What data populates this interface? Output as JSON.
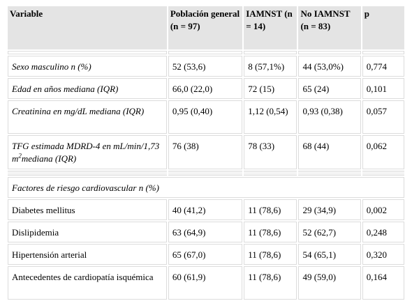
{
  "table": {
    "headers": [
      "Variable",
      "Población general (n = 97)",
      "IAMNST (n = 14)",
      "No IAMNST (n = 83)",
      "p"
    ],
    "rows": [
      {
        "variable": "Sexo masculino n (%)",
        "general": "52 (53,6)",
        "iamnst": "8 (57,1%)",
        "no_iamnst": "44 (53,0%)",
        "p": "0,774"
      },
      {
        "variable": "Edad en años mediana (IQR)",
        "general": "66,0 (22,0)",
        "iamnst": "72 (15)",
        "no_iamnst": "65 (24)",
        "p": "0,101"
      },
      {
        "variable": "Creatinina en mg/dL mediana (IQR)",
        "general": "0,95 (0,40)",
        "iamnst": "1,12 (0,54)",
        "no_iamnst": "0,93 (0,38)",
        "p": "0,057"
      },
      {
        "variable_pre": "TFG estimada MDRD-4 en mL/min/1,73 m",
        "variable_sup": "2",
        "variable_post": "mediana (IQR)",
        "general": "76 (38)",
        "iamnst": "78 (33)",
        "no_iamnst": "68 (44)",
        "p": "0,062"
      }
    ],
    "section_title": "Factores de riesgo cardiovascular n (%)",
    "section_rows": [
      {
        "variable": "Diabetes mellitus",
        "general": "40 (41,2)",
        "iamnst": "11 (78,6)",
        "no_iamnst": "29 (34,9)",
        "p": "0,002"
      },
      {
        "variable": "Dislipidemia",
        "general": "63 (64,9)",
        "iamnst": "11 (78,6)",
        "no_iamnst": "52 (62,7)",
        "p": "0,248"
      },
      {
        "variable": "Hipertensión arterial",
        "general": "65 (67,0)",
        "iamnst": "11 (78,6)",
        "no_iamnst": "54 (65,1)",
        "p": "0,320"
      },
      {
        "variable": "Antecedentes de cardiopatía isquémica",
        "general": "60 (61,9)",
        "iamnst": "11 (78,6)",
        "no_iamnst": "49 (59,0)",
        "p": "0,164"
      }
    ]
  }
}
